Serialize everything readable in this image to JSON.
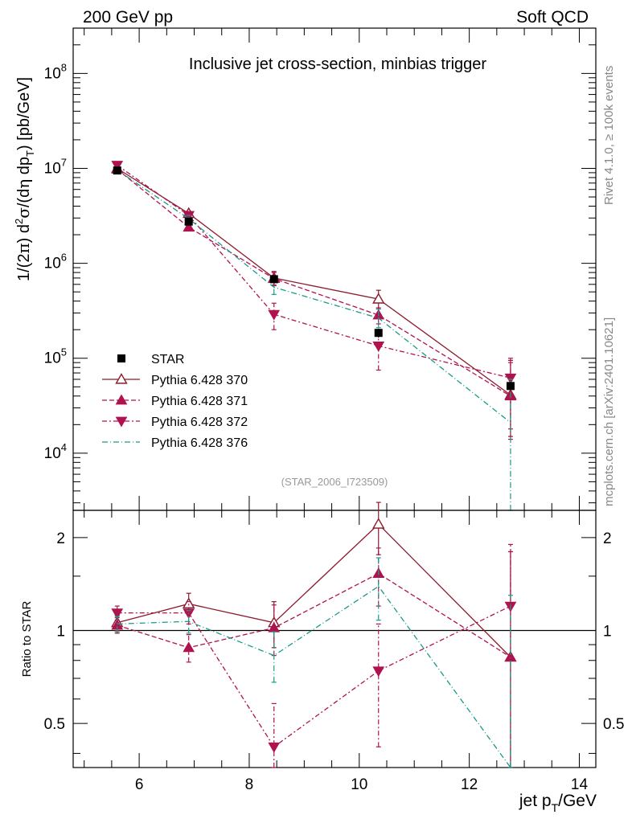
{
  "header": {
    "left_label": "200 GeV pp",
    "right_label": "Soft QCD"
  },
  "side_labels": {
    "rivet": "Rivet 4.1.0, ≥ 100k events",
    "source": "mcplots.cern.ch [arXiv:2401.10621]"
  },
  "chart_data": [
    {
      "type": "line",
      "title": "Inclusive jet cross-section, minbias trigger",
      "analysis_tag": "(STAR_2006_I723509)",
      "ylabel": "1/(2π)  d²σ/(dη dp_T) [pb/GeV]",
      "yscale": "log",
      "ylim": [
        2500,
        300000000.0
      ],
      "xlim": [
        4.8,
        14.3
      ],
      "y_ticks": [
        {
          "value": 10000,
          "base": "10",
          "exp": "4"
        },
        {
          "value": 100000,
          "base": "10",
          "exp": "5"
        },
        {
          "value": 1000000,
          "base": "10",
          "exp": "6"
        },
        {
          "value": 10000000,
          "base": "10",
          "exp": "7"
        },
        {
          "value": 100000000,
          "base": "10",
          "exp": "8"
        }
      ],
      "x": [
        5.6,
        6.9,
        8.45,
        10.35,
        12.75
      ],
      "legend_position": "lower-left",
      "data_points": {
        "name": "STAR",
        "values": [
          9500000,
          2750000,
          680000,
          185000,
          51000
        ],
        "err_low": [
          9000000,
          2500000,
          620000,
          165000,
          46000
        ],
        "err_high": [
          10000000,
          3000000,
          740000,
          205000,
          56000
        ],
        "color": "#000000"
      },
      "series": [
        {
          "name": "Pythia 6.428 370",
          "values": [
            10000000,
            3350000,
            700000,
            420000,
            41000
          ],
          "err_low": [
            9700000,
            3150000,
            590000,
            330000,
            15000
          ],
          "err_high": [
            10300000,
            3550000,
            820000,
            520000,
            95000
          ],
          "color": "#8b1a2b",
          "dash": "",
          "marker": "triangle-up-open"
        },
        {
          "name": "Pythia 6.428 371",
          "values": [
            9800000,
            2400000,
            690000,
            285000,
            40000
          ],
          "err_low": [
            9500000,
            2250000,
            580000,
            230000,
            14000
          ],
          "err_high": [
            10100000,
            2550000,
            800000,
            340000,
            90000
          ],
          "color": "#b0124f",
          "dash": "6,3",
          "marker": "triangle-up"
        },
        {
          "name": "Pythia 6.428 372",
          "values": [
            10800000,
            3200000,
            290000,
            135000,
            62000
          ],
          "err_low": [
            10300000,
            2950000,
            200000,
            75000,
            18000
          ],
          "err_high": [
            11300000,
            3450000,
            380000,
            200000,
            100000
          ],
          "color": "#b0124f",
          "dash": "6,3,2,3",
          "marker": "triangle-down"
        },
        {
          "name": "Pythia 6.428 376",
          "values": [
            9600000,
            2950000,
            560000,
            265000,
            21000
          ],
          "err_low": [
            9300000,
            2700000,
            470000,
            210000,
            2500
          ],
          "err_high": [
            9900000,
            3200000,
            650000,
            330000,
            60000
          ],
          "color": "#1a9a8a",
          "dash": "7,3,1,3",
          "marker": "none"
        }
      ]
    },
    {
      "type": "line",
      "ylabel": "Ratio to STAR",
      "xlabel": "jet p_T/GeV",
      "yscale": "log",
      "ylim": [
        0.36,
        2.45
      ],
      "xlim": [
        4.8,
        14.3
      ],
      "x_ticks": [
        "6",
        "8",
        "10",
        "12",
        "14"
      ],
      "x_tick_values": [
        6,
        8,
        10,
        12,
        14
      ],
      "y_ticks": [
        "0.5",
        "1",
        "2"
      ],
      "y_tick_values": [
        0.5,
        1,
        2
      ],
      "reference": 1,
      "x": [
        5.6,
        6.9,
        8.45,
        10.35,
        12.75
      ],
      "series": [
        {
          "name": "Pythia 6.428 370",
          "values": [
            1.06,
            1.22,
            1.06,
            2.21,
            0.82
          ],
          "err_low": [
            1.0,
            1.13,
            0.88,
            1.76,
            0.3
          ],
          "err_high": [
            1.12,
            1.32,
            1.24,
            2.6,
            1.8
          ],
          "color": "#8b1a2b",
          "dash": "",
          "marker": "triangle-up-open"
        },
        {
          "name": "Pythia 6.428 371",
          "values": [
            1.04,
            0.88,
            1.02,
            1.53,
            0.82
          ],
          "err_low": [
            0.98,
            0.79,
            0.83,
            1.2,
            0.3
          ],
          "err_high": [
            1.1,
            0.97,
            1.21,
            1.85,
            1.8
          ],
          "color": "#b0124f",
          "dash": "6,3",
          "marker": "triangle-up"
        },
        {
          "name": "Pythia 6.428 372",
          "values": [
            1.14,
            1.14,
            0.42,
            0.74,
            1.2
          ],
          "err_low": [
            1.08,
            1.05,
            0.3,
            0.42,
            0.35
          ],
          "err_high": [
            1.2,
            1.24,
            0.58,
            1.05,
            1.9
          ],
          "color": "#b0124f",
          "dash": "6,3,2,3",
          "marker": "triangle-down"
        },
        {
          "name": "Pythia 6.428 376",
          "values": [
            1.05,
            1.07,
            0.83,
            1.39,
            0.36
          ],
          "err_low": [
            0.99,
            0.98,
            0.68,
            1.08,
            0.36
          ],
          "err_high": [
            1.11,
            1.16,
            0.99,
            1.72,
            1.3
          ],
          "color": "#1a9a8a",
          "dash": "7,3,1,3",
          "marker": "none"
        }
      ]
    }
  ]
}
